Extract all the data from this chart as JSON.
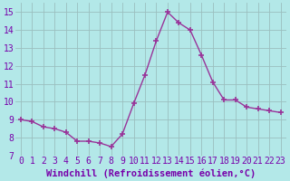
{
  "x": [
    0,
    1,
    2,
    3,
    4,
    5,
    6,
    7,
    8,
    9,
    10,
    11,
    12,
    13,
    14,
    15,
    16,
    17,
    18,
    19,
    20,
    21,
    22,
    23
  ],
  "y": [
    9.0,
    8.9,
    8.6,
    8.5,
    8.3,
    7.8,
    7.8,
    7.7,
    7.5,
    8.2,
    9.9,
    11.5,
    13.4,
    15.0,
    14.4,
    14.0,
    12.6,
    11.1,
    10.1,
    10.1,
    9.7,
    9.6,
    9.5,
    9.4
  ],
  "line_color": "#993399",
  "marker": "+",
  "marker_size": 5,
  "line_width": 1.0,
  "bg_color": "#b3e8e8",
  "grid_color": "#9bbfbf",
  "xlabel": "Windchill (Refroidissement éolien,°C)",
  "ylim": [
    7,
    15.5
  ],
  "xlim": [
    -0.5,
    23.5
  ],
  "yticks": [
    7,
    8,
    9,
    10,
    11,
    12,
    13,
    14,
    15
  ],
  "xticks": [
    0,
    1,
    2,
    3,
    4,
    5,
    6,
    7,
    8,
    9,
    10,
    11,
    12,
    13,
    14,
    15,
    16,
    17,
    18,
    19,
    20,
    21,
    22,
    23
  ],
  "xlabel_color": "#7700aa",
  "tick_color": "#7700aa",
  "font_size": 7,
  "xlabel_fontsize": 7.5
}
